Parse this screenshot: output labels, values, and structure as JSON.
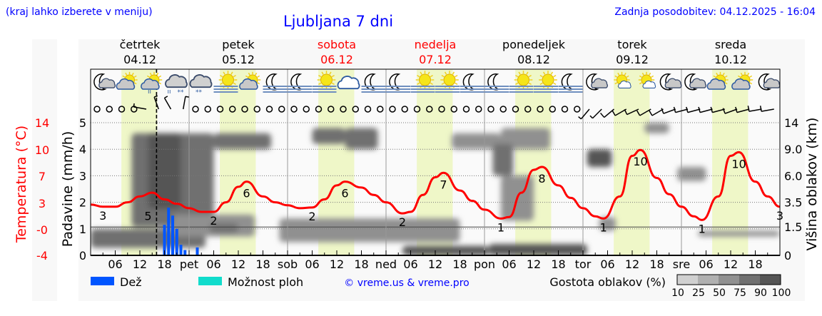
{
  "header": {
    "menu_hint": "(kraj lahko izberete v meniju)",
    "title": "Ljubljana 7 dni",
    "updated": "Zadnja posodobitev: 04.12.2025 - 16:04"
  },
  "days": [
    {
      "name": "četrtek",
      "date": "04.12",
      "weekend": false,
      "abbr": ""
    },
    {
      "name": "petek",
      "date": "05.12",
      "weekend": false,
      "abbr": "pet"
    },
    {
      "name": "sobota",
      "date": "06.12",
      "weekend": true,
      "abbr": "sob"
    },
    {
      "name": "nedelja",
      "date": "07.12",
      "weekend": true,
      "abbr": "ned"
    },
    {
      "name": "ponedeljek",
      "date": "08.12",
      "weekend": false,
      "abbr": "pon"
    },
    {
      "name": "torek",
      "date": "09.12",
      "weekend": false,
      "abbr": "tor"
    },
    {
      "name": "sreda",
      "date": "10.12",
      "weekend": false,
      "abbr": "sre"
    }
  ],
  "icons": [
    "moon-cloud",
    "sun-cloud",
    "sun-cloud-rain",
    "cloud-sleet",
    "cloud-snow",
    "sun-fog",
    "sun-cloud",
    "moon-fog",
    "moon-fog",
    "sun-fog",
    "cloud",
    "moon-fog",
    "moon-fog",
    "sun-fog",
    "sun-fog",
    "moon-fog",
    "moon-fog",
    "sun-fog",
    "sun-fog",
    "moon-fog",
    "moon-cloud",
    "sun-small-cloud",
    "sun-small-cloud",
    "moon-cloud",
    "moon-cloud",
    "sun-cloud",
    "sun-cloud",
    "moon-cloud"
  ],
  "wind": [
    {
      "kt": 0
    },
    {
      "kt": 0
    },
    {
      "kt": 0
    },
    {
      "kt": 0
    },
    {
      "kt": 5,
      "dir": 280
    },
    {
      "kt": 5,
      "dir": 340
    },
    {
      "kt": 5,
      "dir": 330
    },
    {
      "kt": 5,
      "dir": 10
    },
    {
      "kt": 0
    },
    {
      "kt": 0
    },
    {
      "kt": 0
    },
    {
      "kt": 0
    },
    {
      "kt": 0
    },
    {
      "kt": 0
    },
    {
      "kt": 0
    },
    {
      "kt": 0
    },
    {
      "kt": 0
    },
    {
      "kt": 0
    },
    {
      "kt": 0
    },
    {
      "kt": 0
    },
    {
      "kt": 0
    },
    {
      "kt": 0
    },
    {
      "kt": 0
    },
    {
      "kt": 0
    },
    {
      "kt": 0
    },
    {
      "kt": 0
    },
    {
      "kt": 0
    },
    {
      "kt": 0
    },
    {
      "kt": 0
    },
    {
      "kt": 0
    },
    {
      "kt": 0
    },
    {
      "kt": 0
    },
    {
      "kt": 0
    },
    {
      "kt": 0
    },
    {
      "kt": 0
    },
    {
      "kt": 0
    },
    {
      "kt": 0
    },
    {
      "kt": 0
    },
    {
      "kt": 0
    },
    {
      "kt": 0
    },
    {
      "kt": 5,
      "dir": 220
    },
    {
      "kt": 5,
      "dir": 225
    },
    {
      "kt": 10,
      "dir": 230
    },
    {
      "kt": 10,
      "dir": 240
    },
    {
      "kt": 10,
      "dir": 245
    },
    {
      "kt": 10,
      "dir": 240
    },
    {
      "kt": 10,
      "dir": 240
    },
    {
      "kt": 10,
      "dir": 250
    },
    {
      "kt": 10,
      "dir": 255
    },
    {
      "kt": 10,
      "dir": 255
    },
    {
      "kt": 10,
      "dir": 255
    },
    {
      "kt": 10,
      "dir": 255
    },
    {
      "kt": 10,
      "dir": 250
    },
    {
      "kt": 10,
      "dir": 255
    },
    {
      "kt": 10,
      "dir": 260
    },
    {
      "kt": 10,
      "dir": 260
    }
  ],
  "now": "04.12 16:04",
  "chart_data": {
    "type": "line",
    "left_axis": {
      "label": "Temperatura (°C)",
      "ticks": [
        "14",
        "10",
        "7",
        "3",
        "-0",
        "-4"
      ],
      "range": [
        -4,
        14
      ]
    },
    "precip_axis": {
      "label": "Padavine (mm/h)",
      "ticks": [
        "0",
        "1",
        "2",
        "3",
        "4",
        "5"
      ],
      "range": [
        0,
        5
      ]
    },
    "right_axis": {
      "label": "Višina oblakov (km)",
      "ticks": [
        "0",
        "1.5",
        "3.5",
        "6.0",
        "9.0",
        "14"
      ],
      "values": [
        0,
        1.5,
        3.5,
        6,
        9,
        14
      ]
    },
    "x_ticks": [
      "06",
      "12",
      "18"
    ],
    "grid": true,
    "daylight": {
      "from": "07:30",
      "to": "16:15"
    },
    "temperature": {
      "times": [
        "04.12 00:00",
        "04.12 03:00",
        "04.12 06:00",
        "04.12 09:00",
        "04.12 12:00",
        "04.12 15:00",
        "04.12 18:00",
        "04.12 21:00",
        "05.12 00:00",
        "05.12 03:00",
        "05.12 06:00",
        "05.12 09:00",
        "05.12 12:00",
        "05.12 14:00",
        "05.12 18:00",
        "05.12 21:00",
        "06.12 00:00",
        "06.12 03:00",
        "06.12 06:00",
        "06.12 09:00",
        "06.12 12:00",
        "06.12 14:00",
        "06.12 18:00",
        "06.12 21:00",
        "07.12 00:00",
        "07.12 04:00",
        "07.12 06:00",
        "07.12 09:00",
        "07.12 12:00",
        "07.12 14:00",
        "07.12 18:00",
        "07.12 21:00",
        "08.12 00:00",
        "08.12 04:00",
        "08.12 06:00",
        "08.12 09:00",
        "08.12 12:00",
        "08.12 14:00",
        "08.12 18:00",
        "08.12 21:00",
        "09.12 00:00",
        "09.12 03:00",
        "09.12 05:00",
        "09.12 09:00",
        "09.12 12:00",
        "09.12 14:00",
        "09.12 18:00",
        "09.12 21:00",
        "10.12 00:00",
        "10.12 03:00",
        "10.12 05:00",
        "10.12 09:00",
        "10.12 12:00",
        "10.12 14:00",
        "10.12 18:00",
        "10.12 21:00",
        "11.12 00:00"
      ],
      "values": [
        2.9,
        2.6,
        2.6,
        3.2,
        4.0,
        4.5,
        3.6,
        3.0,
        2.4,
        1.9,
        1.9,
        3.2,
        5.3,
        6.0,
        4.0,
        3.2,
        2.8,
        2.4,
        2.5,
        3.6,
        5.5,
        6.0,
        5.2,
        4.2,
        3.2,
        1.7,
        1.9,
        4.2,
        6.6,
        7.2,
        4.8,
        3.4,
        2.2,
        1.0,
        1.2,
        4.5,
        7.6,
        8.0,
        5.5,
        3.8,
        2.4,
        1.3,
        1.0,
        4.0,
        9.5,
        10.3,
        6.5,
        4.3,
        2.6,
        1.3,
        0.8,
        4.0,
        9.5,
        10.0,
        6.0,
        4.0,
        2.6
      ],
      "labels": [
        {
          "t": "04.12 03:00",
          "text": "3"
        },
        {
          "t": "04.12 14:00",
          "text": "5"
        },
        {
          "t": "05.12 06:00",
          "text": "2"
        },
        {
          "t": "05.12 14:00",
          "text": "6"
        },
        {
          "t": "06.12 06:00",
          "text": "2"
        },
        {
          "t": "06.12 14:00",
          "text": "6"
        },
        {
          "t": "07.12 04:00",
          "text": "2"
        },
        {
          "t": "07.12 14:00",
          "text": "7"
        },
        {
          "t": "08.12 04:00",
          "text": "1"
        },
        {
          "t": "08.12 14:00",
          "text": "8"
        },
        {
          "t": "09.12 05:00",
          "text": "1"
        },
        {
          "t": "09.12 14:00",
          "text": "10"
        },
        {
          "t": "10.12 05:00",
          "text": "1"
        },
        {
          "t": "10.12 14:00",
          "text": "10"
        },
        {
          "t": "11.12 00:00",
          "text": "3"
        }
      ],
      "color": "#ff0000"
    },
    "rain": {
      "times": [
        "04.12 18:00",
        "04.12 19:00",
        "04.12 20:00",
        "04.12 21:00",
        "04.12 22:00",
        "04.12 23:00",
        "05.12 02:00"
      ],
      "values": [
        1.15,
        1.8,
        1.5,
        1.0,
        0.4,
        0.2,
        0.3
      ],
      "color": "#0055ff"
    },
    "clouds": [
      {
        "from": "04.12 00:00",
        "to": "05.12 04:00",
        "km": [
          0.4,
          1.4
        ],
        "density": 75
      },
      {
        "from": "04.12 10:00",
        "to": "05.12 06:00",
        "km": [
          1.5,
          12
        ],
        "density": 75
      },
      {
        "from": "04.12 14:00",
        "to": "04.12 22:00",
        "km": [
          3,
          12
        ],
        "density": 90
      },
      {
        "from": "04.12 20:00",
        "to": "05.12 16:00",
        "km": [
          1.0,
          2.5
        ],
        "density": 50
      },
      {
        "from": "05.12 05:00",
        "to": "05.12 12:00",
        "km": [
          1.2,
          1.8
        ],
        "density": 75
      },
      {
        "from": "05.12 06:00",
        "to": "05.12 20:00",
        "km": [
          9,
          12
        ],
        "density": 75
      },
      {
        "from": "05.12 22:00",
        "to": "07.12 18:00",
        "km": [
          0.7,
          2.2
        ],
        "density": 50
      },
      {
        "from": "06.12 14:00",
        "to": "06.12 22:00",
        "km": [
          9,
          13
        ],
        "density": 75
      },
      {
        "from": "06.12 06:00",
        "to": "06.12 14:00",
        "km": [
          10,
          13
        ],
        "density": 75
      },
      {
        "from": "07.12 16:00",
        "to": "08.12 04:00",
        "km": [
          9,
          12
        ],
        "density": 50
      },
      {
        "from": "07.12 04:00",
        "to": "08.12 01:00",
        "km": [
          0,
          0.5
        ],
        "density": 90
      },
      {
        "from": "08.12 01:00",
        "to": "09.12 01:00",
        "km": [
          0,
          0.6
        ],
        "density": 90
      },
      {
        "from": "08.12 04:00",
        "to": "08.12 16:00",
        "km": [
          9,
          13
        ],
        "density": 50
      },
      {
        "from": "08.12 02:00",
        "to": "08.12 07:00",
        "km": [
          6,
          10
        ],
        "density": 75
      },
      {
        "from": "08.12 04:00",
        "to": "08.12 12:00",
        "km": [
          2,
          6
        ],
        "density": 50
      },
      {
        "from": "09.12 01:00",
        "to": "09.12 07:00",
        "km": [
          7,
          9
        ],
        "density": 90
      },
      {
        "from": "09.12 04:00",
        "to": "09.12 08:00",
        "km": [
          1.3,
          2.3
        ],
        "density": 50
      },
      {
        "from": "09.12 15:00",
        "to": "09.12 21:00",
        "km": [
          12,
          14
        ],
        "density": 50
      },
      {
        "from": "09.12 23:00",
        "to": "10.12 06:00",
        "km": [
          5.5,
          7
        ],
        "density": 50
      },
      {
        "from": "10.12 04:00",
        "to": "11.12 00:00",
        "km": [
          1.0,
          1.3
        ],
        "density": 50
      }
    ],
    "legend": {
      "rain": "Dež",
      "rain_color": "#0055ff",
      "showers": "Možnost ploh",
      "showers_color": "#11dccc",
      "credit": "© vreme.us & vreme.pro",
      "density_title": "Gostota oblakov (%)",
      "density_levels": [
        "10",
        "25",
        "50",
        "75",
        "90",
        "100"
      ],
      "density_colors": [
        "#d0d0d0",
        "#b0b0b0",
        "#909090",
        "#707070",
        "#555555"
      ]
    }
  }
}
